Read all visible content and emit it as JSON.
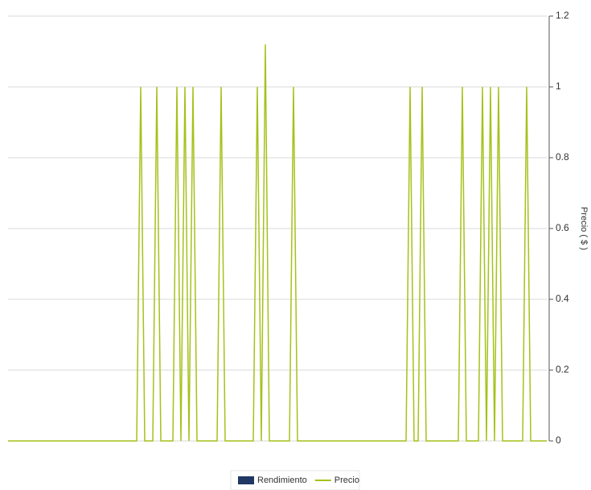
{
  "chart_data": {
    "type": "line",
    "y_axis_side": "right",
    "y_label": "Precio ( $ )",
    "ylim": [
      0,
      1.2
    ],
    "yticks": [
      0,
      0.2,
      0.4,
      0.6,
      0.8,
      1,
      1.2
    ],
    "grid": true,
    "series": [
      {
        "name": "Rendimiento",
        "color": "#1f3864",
        "marker": "rect",
        "values": [
          null,
          null,
          null,
          null,
          null,
          null,
          null,
          null,
          null,
          null,
          null,
          null,
          null,
          null,
          null,
          null,
          null,
          null,
          null,
          null,
          null,
          null,
          null,
          null,
          null,
          null,
          null,
          null,
          null,
          null,
          null,
          null,
          null,
          null,
          null,
          null,
          null,
          null,
          null,
          null,
          null,
          null,
          null,
          null,
          null,
          null,
          null,
          null,
          null,
          null,
          null,
          null,
          null,
          null,
          null,
          null,
          null,
          null,
          null,
          null,
          null,
          null,
          null,
          null,
          null,
          null,
          null,
          null,
          null,
          null,
          null,
          null,
          null,
          null,
          null,
          null,
          null,
          null,
          null,
          null,
          null,
          null,
          null,
          null,
          null,
          null,
          null,
          null,
          null,
          null,
          null,
          null,
          null,
          null,
          null,
          null,
          null,
          null,
          null,
          null,
          null,
          null,
          null,
          null,
          null,
          null,
          null,
          null,
          null,
          null,
          null,
          null,
          null,
          null,
          null,
          null,
          null,
          null,
          null,
          null,
          null,
          null,
          null,
          null,
          null,
          null,
          null,
          null,
          null,
          null,
          null,
          null,
          null,
          null,
          null
        ]
      },
      {
        "name": "Precio",
        "color": "#a4c21a",
        "marker": "line",
        "values": [
          0,
          0,
          0,
          0,
          0,
          0,
          0,
          0,
          0,
          0,
          0,
          0,
          0,
          0,
          0,
          0,
          0,
          0,
          0,
          0,
          0,
          0,
          0,
          0,
          0,
          0,
          0,
          0,
          0,
          0,
          0,
          0,
          0,
          1,
          0,
          0,
          0,
          1,
          0,
          0,
          0,
          0,
          1,
          0,
          1,
          0,
          1,
          0,
          0,
          0,
          0,
          0,
          0,
          1,
          0,
          0,
          0,
          0,
          0,
          0,
          0,
          0,
          1,
          0,
          1.12,
          0,
          0,
          0,
          0,
          0,
          0,
          1,
          0,
          0,
          0,
          0,
          0,
          0,
          0,
          0,
          0,
          0,
          0,
          0,
          0,
          0,
          0,
          0,
          0,
          0,
          0,
          0,
          0,
          0,
          0,
          0,
          0,
          0,
          0,
          0,
          1,
          0,
          0,
          1,
          0,
          0,
          0,
          0,
          0,
          0,
          0,
          0,
          0,
          1,
          0,
          0,
          0,
          0,
          1,
          0,
          1,
          0,
          1,
          0,
          0,
          0,
          0,
          0,
          0,
          1,
          0,
          0,
          0,
          0,
          0
        ]
      }
    ]
  }
}
